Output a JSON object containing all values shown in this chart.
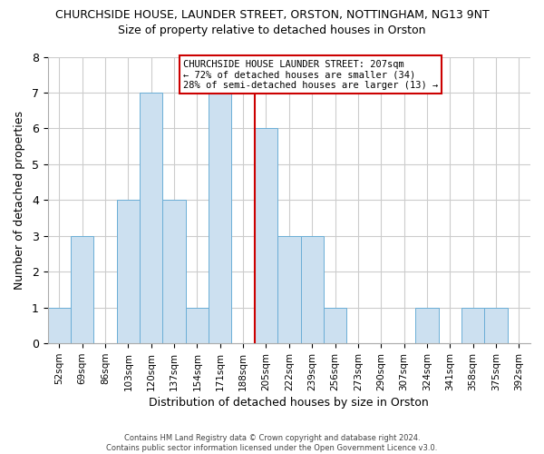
{
  "title": "CHURCHSIDE HOUSE, LAUNDER STREET, ORSTON, NOTTINGHAM, NG13 9NT",
  "subtitle": "Size of property relative to detached houses in Orston",
  "xlabel": "Distribution of detached houses by size in Orston",
  "ylabel": "Number of detached properties",
  "footer_lines": [
    "Contains HM Land Registry data © Crown copyright and database right 2024.",
    "Contains public sector information licensed under the Open Government Licence v3.0."
  ],
  "bins": [
    "52sqm",
    "69sqm",
    "86sqm",
    "103sqm",
    "120sqm",
    "137sqm",
    "154sqm",
    "171sqm",
    "188sqm",
    "205sqm",
    "222sqm",
    "239sqm",
    "256sqm",
    "273sqm",
    "290sqm",
    "307sqm",
    "324sqm",
    "341sqm",
    "358sqm",
    "375sqm",
    "392sqm"
  ],
  "values": [
    1,
    3,
    0,
    4,
    7,
    4,
    1,
    7,
    0,
    6,
    3,
    3,
    1,
    0,
    0,
    0,
    1,
    0,
    1,
    1,
    0
  ],
  "bar_color": "#cce0f0",
  "bar_edge_color": "#6baed6",
  "highlight_line_index": 9,
  "highlight_line_color": "#cc0000",
  "annotation_box_text_line1": "CHURCHSIDE HOUSE LAUNDER STREET: 207sqm",
  "annotation_box_text_line2": "← 72% of detached houses are smaller (34)",
  "annotation_box_text_line3": "28% of semi-detached houses are larger (13) →",
  "annotation_box_edge_color": "#cc0000",
  "annotation_box_facecolor": "#ffffff",
  "ylim": [
    0,
    8
  ],
  "yticks": [
    0,
    1,
    2,
    3,
    4,
    5,
    6,
    7,
    8
  ],
  "grid_color": "#cccccc",
  "background_color": "#ffffff"
}
